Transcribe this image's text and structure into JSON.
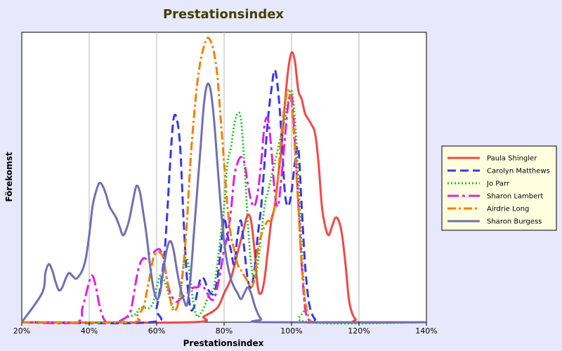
{
  "chart_data": {
    "type": "line",
    "title": "Prestationsindex",
    "xlabel": "Prestationsindex",
    "ylabel": "Förekomst",
    "xlim": [
      20,
      140
    ],
    "ylim": [
      0,
      100
    ],
    "x_ticks": [
      "20%",
      "40%",
      "60%",
      "80%",
      "100%",
      "120%",
      "140%"
    ],
    "x_tick_values": [
      20,
      40,
      60,
      80,
      100,
      120,
      140
    ],
    "grid": "vertical",
    "legend_position": "right",
    "colors": {
      "background": "#e8e8fc",
      "plot": "#ffffff",
      "legend_bg": "#ffffe0",
      "title": "#404000"
    },
    "series": [
      {
        "name": "Paula Shingler",
        "color": "#f04848",
        "dash": "solid",
        "x": [
          20,
          70,
          74,
          78,
          80,
          82,
          84,
          86,
          87,
          88,
          89,
          90,
          91,
          92,
          93,
          94,
          95,
          96,
          97,
          98,
          99,
          100,
          101,
          102,
          103,
          104,
          105,
          106,
          107,
          108,
          109,
          110,
          111,
          112,
          113,
          114,
          115,
          116,
          117,
          118,
          119,
          120,
          140
        ],
        "y": [
          0,
          0,
          2,
          5,
          10,
          15,
          24,
          33,
          37,
          35,
          25,
          12,
          10,
          15,
          25,
          35,
          40,
          50,
          60,
          75,
          87,
          93,
          90,
          80,
          77,
          72,
          70,
          68,
          65,
          55,
          40,
          33,
          30,
          33,
          36,
          35,
          30,
          20,
          8,
          3,
          1,
          0,
          0
        ]
      },
      {
        "name": "Carolyn Matthews",
        "color": "#3838e8",
        "dash": "12,6",
        "x": [
          20,
          58,
          60,
          62,
          63,
          64,
          65,
          66,
          67,
          68,
          69,
          70,
          71,
          72,
          73,
          74,
          75,
          76,
          77,
          78,
          79,
          80,
          81,
          82,
          83,
          84,
          85,
          86,
          87,
          88,
          89,
          90,
          91,
          92,
          93,
          94,
          95,
          96,
          97,
          98,
          99,
          100,
          101,
          102,
          103,
          104,
          105,
          106,
          107,
          108,
          140
        ],
        "y": [
          0,
          0,
          5,
          20,
          35,
          55,
          70,
          70,
          60,
          35,
          15,
          5,
          5,
          10,
          15,
          15,
          12,
          10,
          10,
          15,
          25,
          36,
          30,
          25,
          20,
          30,
          35,
          25,
          15,
          12,
          18,
          30,
          40,
          55,
          70,
          80,
          87,
          80,
          65,
          45,
          40,
          45,
          55,
          60,
          40,
          20,
          8,
          3,
          1,
          0,
          0
        ]
      },
      {
        "name": "Jo Parr",
        "color": "#20c020",
        "dash": "2,3",
        "x": [
          20,
          48,
          50,
          52,
          54,
          55,
          56,
          57,
          58,
          59,
          60,
          61,
          62,
          63,
          64,
          65,
          66,
          67,
          68,
          69,
          70,
          71,
          72,
          73,
          74,
          75,
          76,
          77,
          78,
          79,
          80,
          81,
          82,
          83,
          84,
          85,
          86,
          87,
          88,
          89,
          90,
          91,
          92,
          93,
          94,
          95,
          96,
          97,
          98,
          99,
          100,
          101,
          102,
          103,
          104,
          105,
          140
        ],
        "y": [
          0,
          0,
          1,
          2,
          3,
          5,
          5,
          5,
          5,
          7,
          12,
          16,
          15,
          12,
          8,
          5,
          5,
          10,
          20,
          22,
          15,
          6,
          2,
          3,
          5,
          8,
          10,
          12,
          20,
          30,
          40,
          55,
          60,
          68,
          72,
          70,
          55,
          35,
          20,
          15,
          20,
          30,
          40,
          45,
          50,
          55,
          60,
          65,
          70,
          76,
          80,
          70,
          50,
          25,
          6,
          0,
          0
        ]
      },
      {
        "name": "Sharon Lambert",
        "color": "#e020e0",
        "dash": "16,5,4,5",
        "x": [
          20,
          36,
          38,
          40,
          41,
          42,
          43,
          44,
          45,
          46,
          48,
          50,
          52,
          53,
          54,
          55,
          56,
          57,
          58,
          59,
          60,
          61,
          62,
          63,
          64,
          65,
          66,
          67,
          68,
          69,
          70,
          71,
          72,
          73,
          74,
          75,
          76,
          77,
          78,
          79,
          80,
          81,
          82,
          83,
          84,
          85,
          86,
          87,
          88,
          89,
          90,
          91,
          92,
          93,
          94,
          95,
          96,
          97,
          98,
          99,
          100,
          101,
          102,
          103,
          104,
          105,
          106,
          107,
          108,
          140
        ],
        "y": [
          0,
          0,
          5,
          14,
          16,
          12,
          6,
          2,
          0,
          0,
          0,
          1,
          3,
          8,
          15,
          20,
          22,
          22,
          24,
          24,
          25,
          25,
          22,
          15,
          10,
          8,
          7,
          8,
          9,
          10,
          11,
          12,
          12,
          13,
          12,
          10,
          8,
          8,
          12,
          18,
          25,
          30,
          38,
          50,
          55,
          57,
          55,
          48,
          42,
          40,
          45,
          55,
          68,
          70,
          60,
          45,
          40,
          50,
          63,
          75,
          78,
          62,
          42,
          20,
          5,
          1,
          0,
          0,
          0,
          0
        ]
      },
      {
        "name": "Airdrie Long",
        "color": "#f08000",
        "dash": "12,4,3,4",
        "x": [
          20,
          52,
          54,
          56,
          57,
          58,
          59,
          60,
          61,
          62,
          63,
          64,
          65,
          66,
          67,
          68,
          69,
          70,
          71,
          72,
          73,
          74,
          75,
          76,
          77,
          78,
          79,
          80,
          81,
          82,
          83,
          84,
          85,
          86,
          87,
          88,
          89,
          90,
          91,
          92,
          93,
          94,
          95,
          96,
          97,
          98,
          99,
          100,
          101,
          102,
          103,
          104,
          105,
          106,
          107,
          140
        ],
        "y": [
          0,
          0,
          2,
          5,
          10,
          16,
          22,
          24,
          24,
          22,
          15,
          8,
          4,
          5,
          10,
          20,
          35,
          55,
          70,
          82,
          90,
          95,
          98,
          97,
          93,
          85,
          70,
          55,
          40,
          30,
          25,
          20,
          18,
          16,
          14,
          12,
          15,
          25,
          30,
          33,
          35,
          35,
          40,
          50,
          65,
          75,
          80,
          75,
          60,
          40,
          20,
          8,
          2,
          0,
          0,
          0
        ]
      },
      {
        "name": "Sharon Burgess",
        "color": "#7070b0",
        "dash": "solid",
        "x": [
          20,
          26,
          27,
          28,
          29,
          30,
          31,
          32,
          33,
          34,
          35,
          36,
          37,
          38,
          39,
          40,
          41,
          42,
          43,
          44,
          45,
          46,
          47,
          48,
          49,
          50,
          51,
          52,
          53,
          54,
          55,
          56,
          57,
          58,
          59,
          60,
          61,
          62,
          63,
          64,
          65,
          66,
          67,
          68,
          69,
          70,
          71,
          72,
          73,
          74,
          75,
          76,
          77,
          78,
          79,
          80,
          81,
          82,
          83,
          84,
          85,
          86,
          87,
          88,
          89,
          90,
          91,
          92,
          140
        ],
        "y": [
          0,
          10,
          17,
          20,
          18,
          14,
          11,
          12,
          15,
          17,
          16,
          15,
          16,
          18,
          22,
          30,
          40,
          45,
          48,
          47,
          44,
          40,
          38,
          36,
          33,
          30,
          32,
          36,
          42,
          47,
          45,
          38,
          30,
          20,
          12,
          8,
          10,
          18,
          25,
          28,
          25,
          18,
          12,
          8,
          6,
          15,
          30,
          45,
          60,
          75,
          82,
          80,
          70,
          55,
          40,
          28,
          20,
          15,
          12,
          10,
          8,
          10,
          12,
          10,
          6,
          3,
          1,
          0,
          0
        ]
      }
    ]
  }
}
